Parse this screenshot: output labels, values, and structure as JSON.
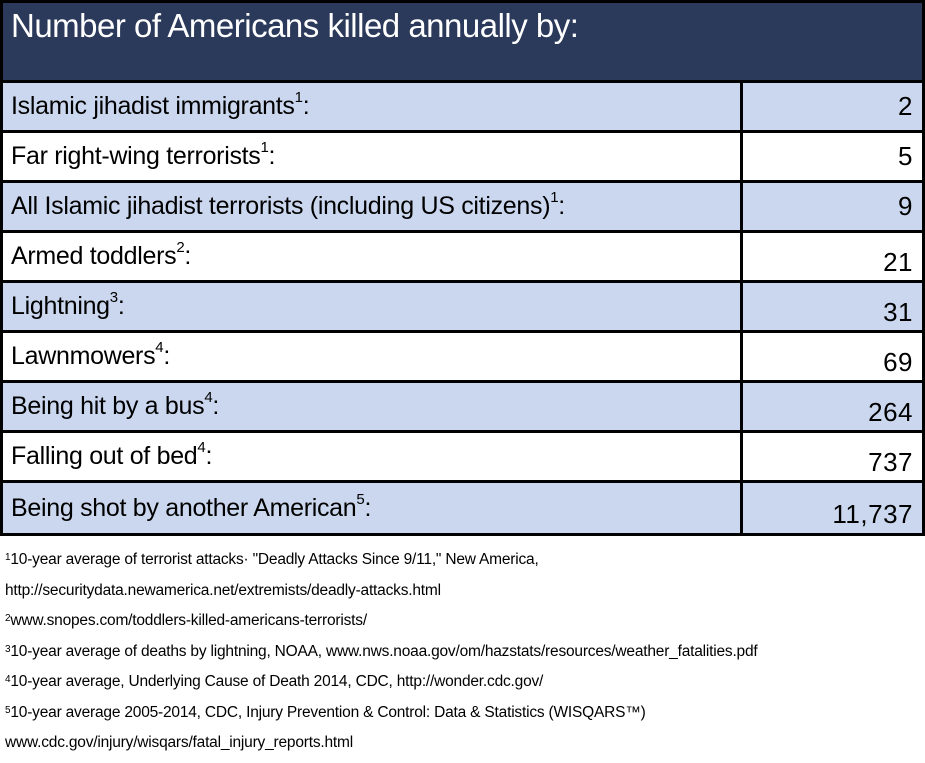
{
  "title": "Number of Americans killed annually by:",
  "colors": {
    "header_bg": "#2B3A5B",
    "header_text": "#FFFFFF",
    "row_alt_bg": "#CAD7EE",
    "row_bg": "#FFFFFF",
    "border": "#000000",
    "text": "#000000"
  },
  "table": {
    "rows": [
      {
        "label": "Islamic jihadist immigrants",
        "sup": "1",
        "suffix": ":",
        "value": "2"
      },
      {
        "label": "Far right-wing terrorists",
        "sup": "1",
        "suffix": ":",
        "value": "5"
      },
      {
        "label": "All Islamic jihadist terrorists (including US citizens)",
        "sup": "1",
        "suffix": ":",
        "value": "9"
      },
      {
        "label": "Armed toddlers",
        "sup": "2",
        "suffix": ":",
        "value": "21"
      },
      {
        "label": "Lightning",
        "sup": "3",
        "suffix": ":",
        "value": "31"
      },
      {
        "label": "Lawnmowers",
        "sup": "4",
        "suffix": ":",
        "value": "69"
      },
      {
        "label": "Being hit by a bus",
        "sup": "4",
        "suffix": ":",
        "value": "264"
      },
      {
        "label": "Falling out of bed",
        "sup": "4",
        "suffix": ":",
        "value": "737"
      },
      {
        "label": "Being shot by another American",
        "sup": "5",
        "suffix": ":",
        "value": "11,737"
      }
    ]
  },
  "footnotes": [
    {
      "sup": "1",
      "text": "10-year average of terrorist attacks· \"Deadly Attacks Since 9/11,\" New America,"
    },
    {
      "sup": "",
      "text": "http://securitydata.newamerica.net/extremists/deadly-attacks.html"
    },
    {
      "sup": "2",
      "text": "www.snopes.com/toddlers-killed-americans-terrorists/"
    },
    {
      "sup": "3",
      "text": "10-year average of deaths by lightning, NOAA, www.nws.noaa.gov/om/hazstats/resources/weather_fatalities.pdf"
    },
    {
      "sup": "4",
      "text": "10-year average, Underlying Cause of Death 2014, CDC, http://wonder.cdc.gov/"
    },
    {
      "sup": "5",
      "text": "10-year average 2005-2014, CDC, Injury Prevention & Control: Data & Statistics (WISQARS™)"
    },
    {
      "sup": "",
      "text": "www.cdc.gov/injury/wisqars/fatal_injury_reports.html"
    }
  ],
  "chart_data": {
    "type": "table",
    "title": "Number of Americans killed annually by:",
    "categories": [
      "Islamic jihadist immigrants",
      "Far right-wing terrorists",
      "All Islamic jihadist terrorists (including US citizens)",
      "Armed toddlers",
      "Lightning",
      "Lawnmowers",
      "Being hit by a bus",
      "Falling out of bed",
      "Being shot by another American"
    ],
    "values": [
      2,
      5,
      9,
      21,
      31,
      69,
      264,
      737,
      11737
    ],
    "notes": "values are annual deaths; footnote markers 1-5 cite sources"
  }
}
